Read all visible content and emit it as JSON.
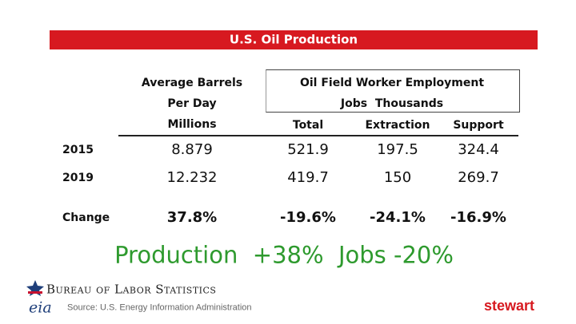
{
  "title": "U.S. Oil Production",
  "table": {
    "header": {
      "first": [
        "Average Barrels",
        "Per Day",
        "Millions"
      ],
      "group": [
        "Oil Field Worker Employment",
        "Jobs  Thousands"
      ],
      "columns": [
        "Total",
        "Extraction",
        "Support"
      ]
    },
    "rows": [
      [
        "2015",
        "8.879",
        "521.9",
        "197.5",
        "324.4"
      ],
      [
        "2019",
        "12.232",
        "419.7",
        "150",
        "269.7"
      ],
      [
        "Change",
        "37.8%",
        "-19.6%",
        "-24.1%",
        "-16.9%"
      ]
    ]
  },
  "summary": "Production  +38%  Jobs -20%",
  "footer": {
    "bls": "Bureau of Labor Statistics",
    "eia": "eia",
    "source": "Source: U.S. Energy Information Administration",
    "logo": "stewart"
  }
}
